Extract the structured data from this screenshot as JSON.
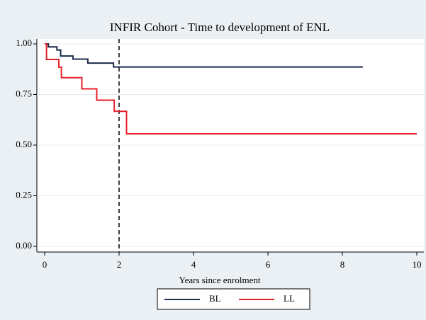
{
  "chart_data": {
    "type": "step",
    "title": "INFIR Cohort - Time to development of ENL",
    "x_label": "Years since enrolment",
    "xlim": [
      0,
      10
    ],
    "xticks": [
      0,
      2,
      4,
      6,
      8,
      10
    ],
    "ylim": [
      0,
      1
    ],
    "yticks": [
      {
        "value": 0,
        "label": "0.00"
      },
      {
        "value": 0.25,
        "label": "0.25"
      },
      {
        "value": 0.5,
        "label": "0.50"
      },
      {
        "value": 0.75,
        "label": "0.75"
      },
      {
        "value": 1,
        "label": "1.00"
      }
    ],
    "grid": true,
    "vline": 2,
    "legend": "bottom",
    "series": [
      {
        "name": "BL",
        "color": "#1a2b4c",
        "x": [
          0,
          0.1,
          0.33,
          0.43,
          0.76,
          1.16,
          1.85,
          8.55
        ],
        "values": [
          1,
          0.985,
          0.97,
          0.94,
          0.925,
          0.905,
          0.886,
          0.886
        ]
      },
      {
        "name": "LL",
        "color": "#e8202a",
        "x": [
          0,
          0.05,
          0.38,
          0.45,
          1.0,
          1.4,
          1.87,
          2.2,
          10
        ],
        "values": [
          1,
          0.923,
          0.885,
          0.833,
          0.778,
          0.722,
          0.667,
          0.556,
          0.556
        ]
      }
    ]
  }
}
